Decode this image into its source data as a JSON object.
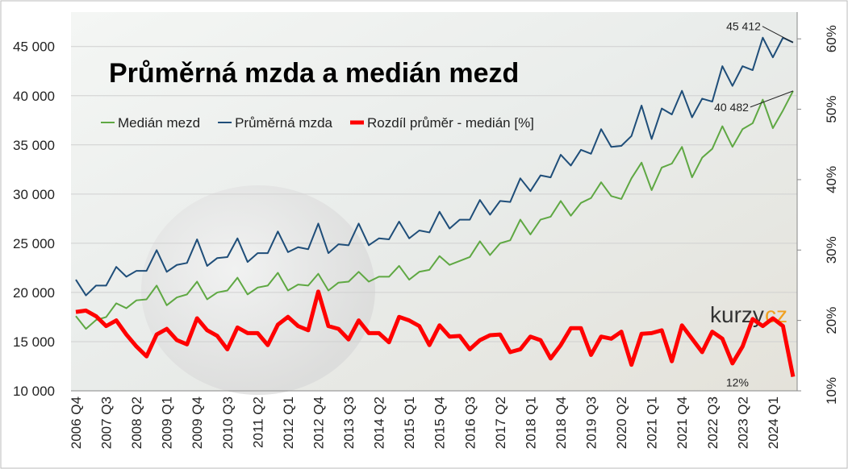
{
  "chart_data": {
    "type": "line",
    "title": "Průměrná mzda a medián mezd",
    "watermark": [
      "kurzy",
      "cz"
    ],
    "categories": [
      "2006 Q4",
      null,
      null,
      "2007 Q3",
      null,
      null,
      "2008 Q2",
      null,
      null,
      "2009 Q1",
      null,
      null,
      "2009 Q4",
      null,
      null,
      "2010 Q3",
      null,
      null,
      "2011 Q2",
      null,
      null,
      "2012 Q1",
      null,
      null,
      "2012 Q4",
      null,
      null,
      "2013 Q3",
      null,
      null,
      "2014 Q2",
      null,
      null,
      "2015 Q1",
      null,
      null,
      "2015 Q4",
      null,
      null,
      "2016 Q3",
      null,
      null,
      "2017 Q2",
      null,
      null,
      "2018 Q1",
      null,
      null,
      "2018 Q4",
      null,
      null,
      "2019 Q3",
      null,
      null,
      "2020 Q2",
      null,
      null,
      "2021 Q1",
      null,
      null,
      "2021 Q4",
      null,
      null,
      "2022 Q3",
      null,
      null,
      "2023 Q2",
      null,
      null,
      "2024 Q1",
      null,
      null
    ],
    "series": [
      {
        "name": "Medián mezd",
        "color": "#5fa843",
        "width": 2,
        "values": [
          17600,
          16300,
          17200,
          17500,
          18900,
          18400,
          19200,
          19300,
          20700,
          18700,
          19500,
          19800,
          21100,
          19300,
          20000,
          20200,
          21500,
          19800,
          20500,
          20700,
          22000,
          20200,
          20800,
          20700,
          21900,
          20200,
          21000,
          21100,
          22100,
          21100,
          21600,
          21600,
          22700,
          21300,
          22100,
          22300,
          23700,
          22800,
          23200,
          23600,
          25200,
          23800,
          25000,
          25300,
          27400,
          25900,
          27400,
          27700,
          29300,
          27800,
          29100,
          29600,
          31200,
          29800,
          29500,
          31600,
          33200,
          30400,
          32700,
          33100,
          34800,
          31700,
          33700,
          34600,
          36900,
          34800,
          36600,
          37200,
          39600,
          36700,
          38500,
          40482
        ],
        "value_labels": [
          null,
          null,
          null,
          null,
          null,
          null,
          null,
          null,
          null,
          null,
          null,
          null,
          null,
          null,
          null,
          null,
          null,
          null,
          null,
          null,
          null,
          null,
          null,
          null,
          null,
          null,
          null,
          null,
          null,
          null,
          null,
          null,
          null,
          null,
          null,
          null,
          null,
          null,
          null,
          null,
          null,
          null,
          null,
          null,
          null,
          null,
          null,
          null,
          null,
          null,
          null,
          null,
          null,
          null,
          null,
          null,
          null,
          null,
          null,
          null,
          null,
          null,
          null,
          null,
          null,
          null,
          null,
          null,
          null,
          null,
          null,
          "40 482"
        ]
      },
      {
        "name": "Průměrná mzda",
        "color": "#1f4e79",
        "width": 2,
        "values": [
          21300,
          19700,
          20700,
          20700,
          22600,
          21600,
          22200,
          22200,
          24300,
          22100,
          22800,
          23000,
          25400,
          22700,
          23500,
          23600,
          25500,
          23100,
          24000,
          24000,
          26200,
          24100,
          24600,
          24400,
          27000,
          24000,
          24900,
          24800,
          27000,
          24800,
          25500,
          25400,
          27200,
          25500,
          26300,
          26100,
          28200,
          26500,
          27400,
          27400,
          29400,
          27900,
          29300,
          29200,
          31600,
          30300,
          31900,
          31700,
          34000,
          32900,
          34500,
          34100,
          36600,
          34800,
          34900,
          35900,
          39000,
          35600,
          38700,
          38100,
          40500,
          37800,
          39700,
          39400,
          43000,
          41000,
          43000,
          42600,
          45900,
          43900,
          45900,
          45412
        ],
        "value_labels": [
          null,
          null,
          null,
          null,
          null,
          null,
          null,
          null,
          null,
          null,
          null,
          null,
          null,
          null,
          null,
          null,
          null,
          null,
          null,
          null,
          null,
          null,
          null,
          null,
          null,
          null,
          null,
          null,
          null,
          null,
          null,
          null,
          null,
          null,
          null,
          null,
          null,
          null,
          null,
          null,
          null,
          null,
          null,
          null,
          null,
          null,
          null,
          null,
          null,
          null,
          null,
          null,
          null,
          null,
          null,
          null,
          null,
          null,
          null,
          null,
          null,
          null,
          null,
          null,
          null,
          null,
          null,
          null,
          null,
          null,
          null,
          "45 412"
        ]
      },
      {
        "name": "Rozdíl průměr - medián [%]",
        "color": "#ff0000",
        "width": 5,
        "axis": "y2",
        "values": [
          21.2,
          21.4,
          20.6,
          19.2,
          20.0,
          18.0,
          16.3,
          14.9,
          18.0,
          18.8,
          17.2,
          16.6,
          20.3,
          18.6,
          17.8,
          15.9,
          19.0,
          18.2,
          18.2,
          16.5,
          19.4,
          20.5,
          19.2,
          18.6,
          24.1,
          19.2,
          18.8,
          17.3,
          20.0,
          18.2,
          18.2,
          16.9,
          20.5,
          20.0,
          19.2,
          16.5,
          19.3,
          17.7,
          17.8,
          15.9,
          17.2,
          17.9,
          18.0,
          15.5,
          15.9,
          17.7,
          17.2,
          14.6,
          16.5,
          18.9,
          18.9,
          15.1,
          17.7,
          17.4,
          18.4,
          13.7,
          18.1,
          18.2,
          18.6,
          14.2,
          19.3,
          17.4,
          15.5,
          18.4,
          17.4,
          13.9,
          16.3,
          20.2,
          19.2,
          20.3,
          19.2,
          12
        ],
        "value_labels": [
          null,
          null,
          null,
          null,
          null,
          null,
          null,
          null,
          null,
          null,
          null,
          null,
          null,
          null,
          null,
          null,
          null,
          null,
          null,
          null,
          null,
          null,
          null,
          null,
          null,
          null,
          null,
          null,
          null,
          null,
          null,
          null,
          null,
          null,
          null,
          null,
          null,
          null,
          null,
          null,
          null,
          null,
          null,
          null,
          null,
          null,
          null,
          null,
          null,
          null,
          null,
          null,
          null,
          null,
          null,
          null,
          null,
          null,
          null,
          null,
          null,
          null,
          null,
          null,
          null,
          null,
          null,
          null,
          null,
          null,
          null,
          "12%"
        ]
      }
    ],
    "ylim": [
      10000,
      48500
    ],
    "yticks": [
      {
        "value": 10000,
        "label": "10 000"
      },
      {
        "value": 15000,
        "label": "15 000"
      },
      {
        "value": 20000,
        "label": "20 000"
      },
      {
        "value": 25000,
        "label": "25 000"
      },
      {
        "value": 30000,
        "label": "30 000"
      },
      {
        "value": 35000,
        "label": "35 000"
      },
      {
        "value": 40000,
        "label": "40 000"
      },
      {
        "value": 45000,
        "label": "45 000"
      }
    ],
    "y2lim": [
      10,
      63.8
    ],
    "y2ticks": [
      {
        "value": 10,
        "label": "10%"
      },
      {
        "value": 20,
        "label": "20%"
      },
      {
        "value": 30,
        "label": "30%"
      },
      {
        "value": 40,
        "label": "40%"
      },
      {
        "value": 50,
        "label": "50%"
      },
      {
        "value": 60,
        "label": "60%"
      }
    ],
    "grid": true,
    "legend": "top-left"
  }
}
